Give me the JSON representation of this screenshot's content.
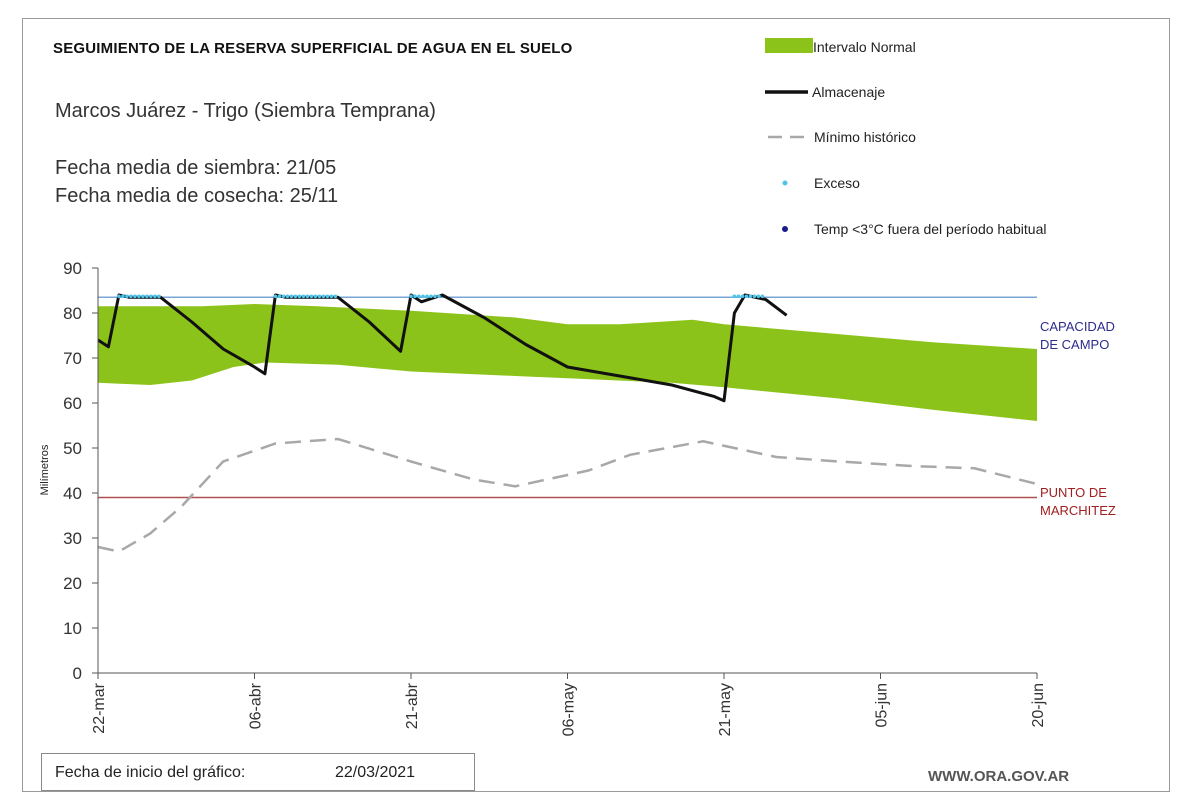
{
  "header": {
    "title": "SEGUIMIENTO DE LA RESERVA SUPERFICIAL DE AGUA EN EL SUELO",
    "subtitle": "Marcos Juárez - Trigo (Siembra Temprana)",
    "sowing_date": "Fecha media de siembra: 21/05",
    "harvest_date": "Fecha media de cosecha: 25/11"
  },
  "legend": {
    "normal_range": "Intervalo Normal",
    "storage": "Almacenaje",
    "historic_min": "Mínimo histórico",
    "excess": "Exceso",
    "low_temp": "Temp <3°C fuera del período habitual"
  },
  "reference_lines": {
    "field_capacity": {
      "value": 83.5,
      "label_lines": [
        "CAPACIDAD",
        "DE CAMPO"
      ],
      "color": "#7aa6d6",
      "label_color": "#2c2c8c"
    },
    "wilting_point": {
      "value": 39,
      "label_lines": [
        "PUNTO  DE",
        "MARCHITEZ"
      ],
      "color": "#b05050",
      "label_color": "#a02020"
    }
  },
  "footer": {
    "start_label": "Fecha de inicio del gráfico:",
    "start_value": "22/03/2021",
    "website": "WWW.ORA.GOV.AR"
  },
  "colors": {
    "normal_band": "#8cc31a",
    "storage": "#111111",
    "historic_min": "#a8a8a8",
    "excess": "#4fc3e8",
    "low_temp": "#1a1a8c"
  },
  "chart_data": {
    "type": "line",
    "title": "SEGUIMIENTO DE LA RESERVA SUPERFICIAL DE AGUA EN EL SUELO",
    "xlabel": "",
    "ylabel": "Milímetros",
    "xlim": [
      "2021-03-22",
      "2021-06-20"
    ],
    "ylim": [
      0,
      90
    ],
    "yticks": [
      0,
      10,
      20,
      30,
      40,
      50,
      60,
      70,
      80,
      90
    ],
    "x_ticks": [
      {
        "date": "2021-03-22",
        "label": "22-mar"
      },
      {
        "date": "2021-04-06",
        "label": "06-abr"
      },
      {
        "date": "2021-04-21",
        "label": "21-abr"
      },
      {
        "date": "2021-05-06",
        "label": "06-may"
      },
      {
        "date": "2021-05-21",
        "label": "21-may"
      },
      {
        "date": "2021-06-05",
        "label": "05-jun"
      },
      {
        "date": "2021-06-20",
        "label": "20-jun"
      }
    ],
    "grid": false,
    "legend_position": "top-right",
    "normal_range": {
      "name": "Intervalo Normal",
      "upper": [
        [
          "2021-03-22",
          81.5
        ],
        [
          "2021-03-26",
          81.5
        ],
        [
          "2021-04-01",
          81.5
        ],
        [
          "2021-04-06",
          82
        ],
        [
          "2021-04-12",
          81.5
        ],
        [
          "2021-04-21",
          80.5
        ],
        [
          "2021-05-01",
          79
        ],
        [
          "2021-05-06",
          77.5
        ],
        [
          "2021-05-11",
          77.5
        ],
        [
          "2021-05-18",
          78.5
        ],
        [
          "2021-05-21",
          77.5
        ],
        [
          "2021-05-31",
          75.5
        ],
        [
          "2021-06-10",
          73.5
        ],
        [
          "2021-06-20",
          72
        ]
      ],
      "lower": [
        [
          "2021-03-22",
          64.5
        ],
        [
          "2021-03-27",
          64
        ],
        [
          "2021-03-31",
          65
        ],
        [
          "2021-04-04",
          68
        ],
        [
          "2021-04-07",
          69
        ],
        [
          "2021-04-14",
          68.5
        ],
        [
          "2021-04-21",
          67
        ],
        [
          "2021-05-01",
          66
        ],
        [
          "2021-05-06",
          65.5
        ],
        [
          "2021-05-16",
          64.5
        ],
        [
          "2021-05-21",
          63.5
        ],
        [
          "2021-06-01",
          61
        ],
        [
          "2021-06-10",
          58.5
        ],
        [
          "2021-06-20",
          56
        ]
      ]
    },
    "series": [
      {
        "name": "Almacenaje",
        "points": [
          [
            "2021-03-22",
            74
          ],
          [
            "2021-03-23",
            72.5
          ],
          [
            "2021-03-24",
            84
          ],
          [
            "2021-03-25",
            83.5
          ],
          [
            "2021-03-28",
            83.5
          ],
          [
            "2021-03-31",
            78
          ],
          [
            "2021-04-03",
            72
          ],
          [
            "2021-04-06",
            68
          ],
          [
            "2021-04-07",
            66.5
          ],
          [
            "2021-04-08",
            84
          ],
          [
            "2021-04-09",
            83.5
          ],
          [
            "2021-04-14",
            83.5
          ],
          [
            "2021-04-17",
            78
          ],
          [
            "2021-04-20",
            71.5
          ],
          [
            "2021-04-21",
            84
          ],
          [
            "2021-04-22",
            82.5
          ],
          [
            "2021-04-24",
            84
          ],
          [
            "2021-04-28",
            79
          ],
          [
            "2021-05-02",
            73
          ],
          [
            "2021-05-06",
            68
          ],
          [
            "2021-05-11",
            66
          ],
          [
            "2021-05-16",
            64
          ],
          [
            "2021-05-20",
            61.5
          ],
          [
            "2021-05-21",
            60.5
          ],
          [
            "2021-05-22",
            80
          ],
          [
            "2021-05-23",
            84
          ],
          [
            "2021-05-25",
            83
          ],
          [
            "2021-05-27",
            79.5
          ]
        ]
      },
      {
        "name": "Mínimo histórico",
        "points": [
          [
            "2021-03-22",
            28
          ],
          [
            "2021-03-24",
            27
          ],
          [
            "2021-03-27",
            31
          ],
          [
            "2021-03-30",
            37
          ],
          [
            "2021-04-03",
            47
          ],
          [
            "2021-04-08",
            51
          ],
          [
            "2021-04-14",
            52
          ],
          [
            "2021-04-21",
            47
          ],
          [
            "2021-04-27",
            43
          ],
          [
            "2021-05-01",
            41.5
          ],
          [
            "2021-05-08",
            45
          ],
          [
            "2021-05-12",
            48.5
          ],
          [
            "2021-05-19",
            51.5
          ],
          [
            "2021-05-26",
            48
          ],
          [
            "2021-06-01",
            47
          ],
          [
            "2021-06-08",
            46
          ],
          [
            "2021-06-14",
            45.5
          ],
          [
            "2021-06-20",
            42
          ]
        ]
      }
    ],
    "excess_segments": [
      [
        "2021-03-24",
        "2021-03-28"
      ],
      [
        "2021-04-08",
        "2021-04-14"
      ],
      [
        "2021-04-21",
        "2021-04-24"
      ],
      [
        "2021-05-22",
        "2021-05-25"
      ]
    ],
    "low_temp_points": []
  }
}
